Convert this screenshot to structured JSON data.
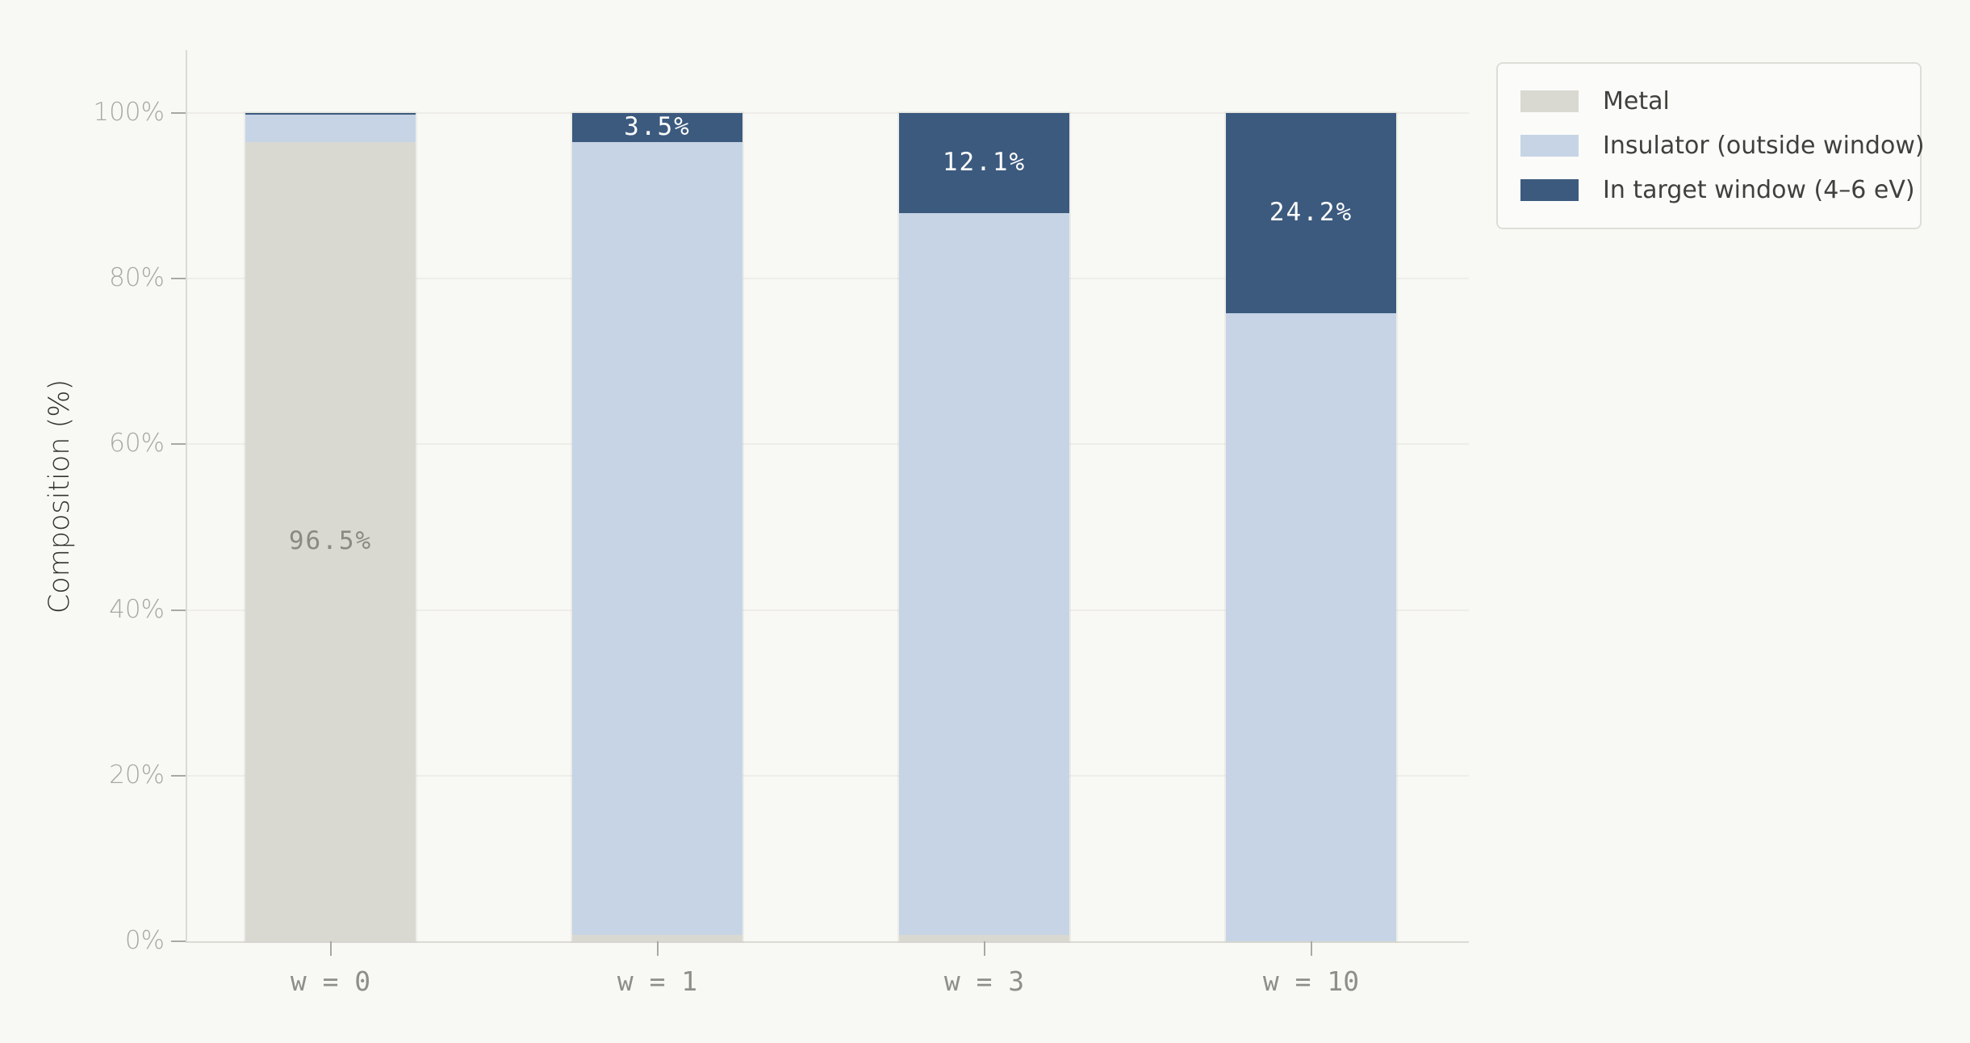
{
  "chart_data": {
    "type": "bar",
    "stacked": true,
    "orientation": "vertical",
    "categories": [
      "w = 0",
      "w = 1",
      "w = 3",
      "w = 10"
    ],
    "series": [
      {
        "name": "Metal",
        "color": "#d9d9d2",
        "values": [
          96.5,
          0.8,
          0.8,
          0.0
        ]
      },
      {
        "name": "Insulator (outside window)",
        "color": "#c6d4e5",
        "values": [
          3.3,
          95.7,
          87.1,
          75.8
        ]
      },
      {
        "name": "In target window (4–6 eV)",
        "color": "#3c5a7e",
        "values": [
          0.2,
          3.5,
          12.1,
          24.2
        ]
      }
    ],
    "bar_labels": [
      {
        "category_index": 0,
        "series_index": 0,
        "text": "96.5%",
        "color": "#8a8a83"
      },
      {
        "category_index": 1,
        "series_index": 2,
        "text": "3.5%",
        "color": "#fdfdfd"
      },
      {
        "category_index": 2,
        "series_index": 2,
        "text": "12.1%",
        "color": "#fdfdfd"
      },
      {
        "category_index": 3,
        "series_index": 2,
        "text": "24.2%",
        "color": "#fdfdfd"
      }
    ],
    "title": "",
    "xlabel": "",
    "ylabel": "Composition (%)",
    "ylim": [
      0,
      100
    ],
    "y_ticks": [
      {
        "value": 0,
        "label": "0%"
      },
      {
        "value": 20,
        "label": "20%"
      },
      {
        "value": 40,
        "label": "40%"
      },
      {
        "value": 60,
        "label": "60%"
      },
      {
        "value": 80,
        "label": "80%"
      },
      {
        "value": 100,
        "label": "100%"
      }
    ],
    "grid": true,
    "legend_position": "top-right"
  }
}
